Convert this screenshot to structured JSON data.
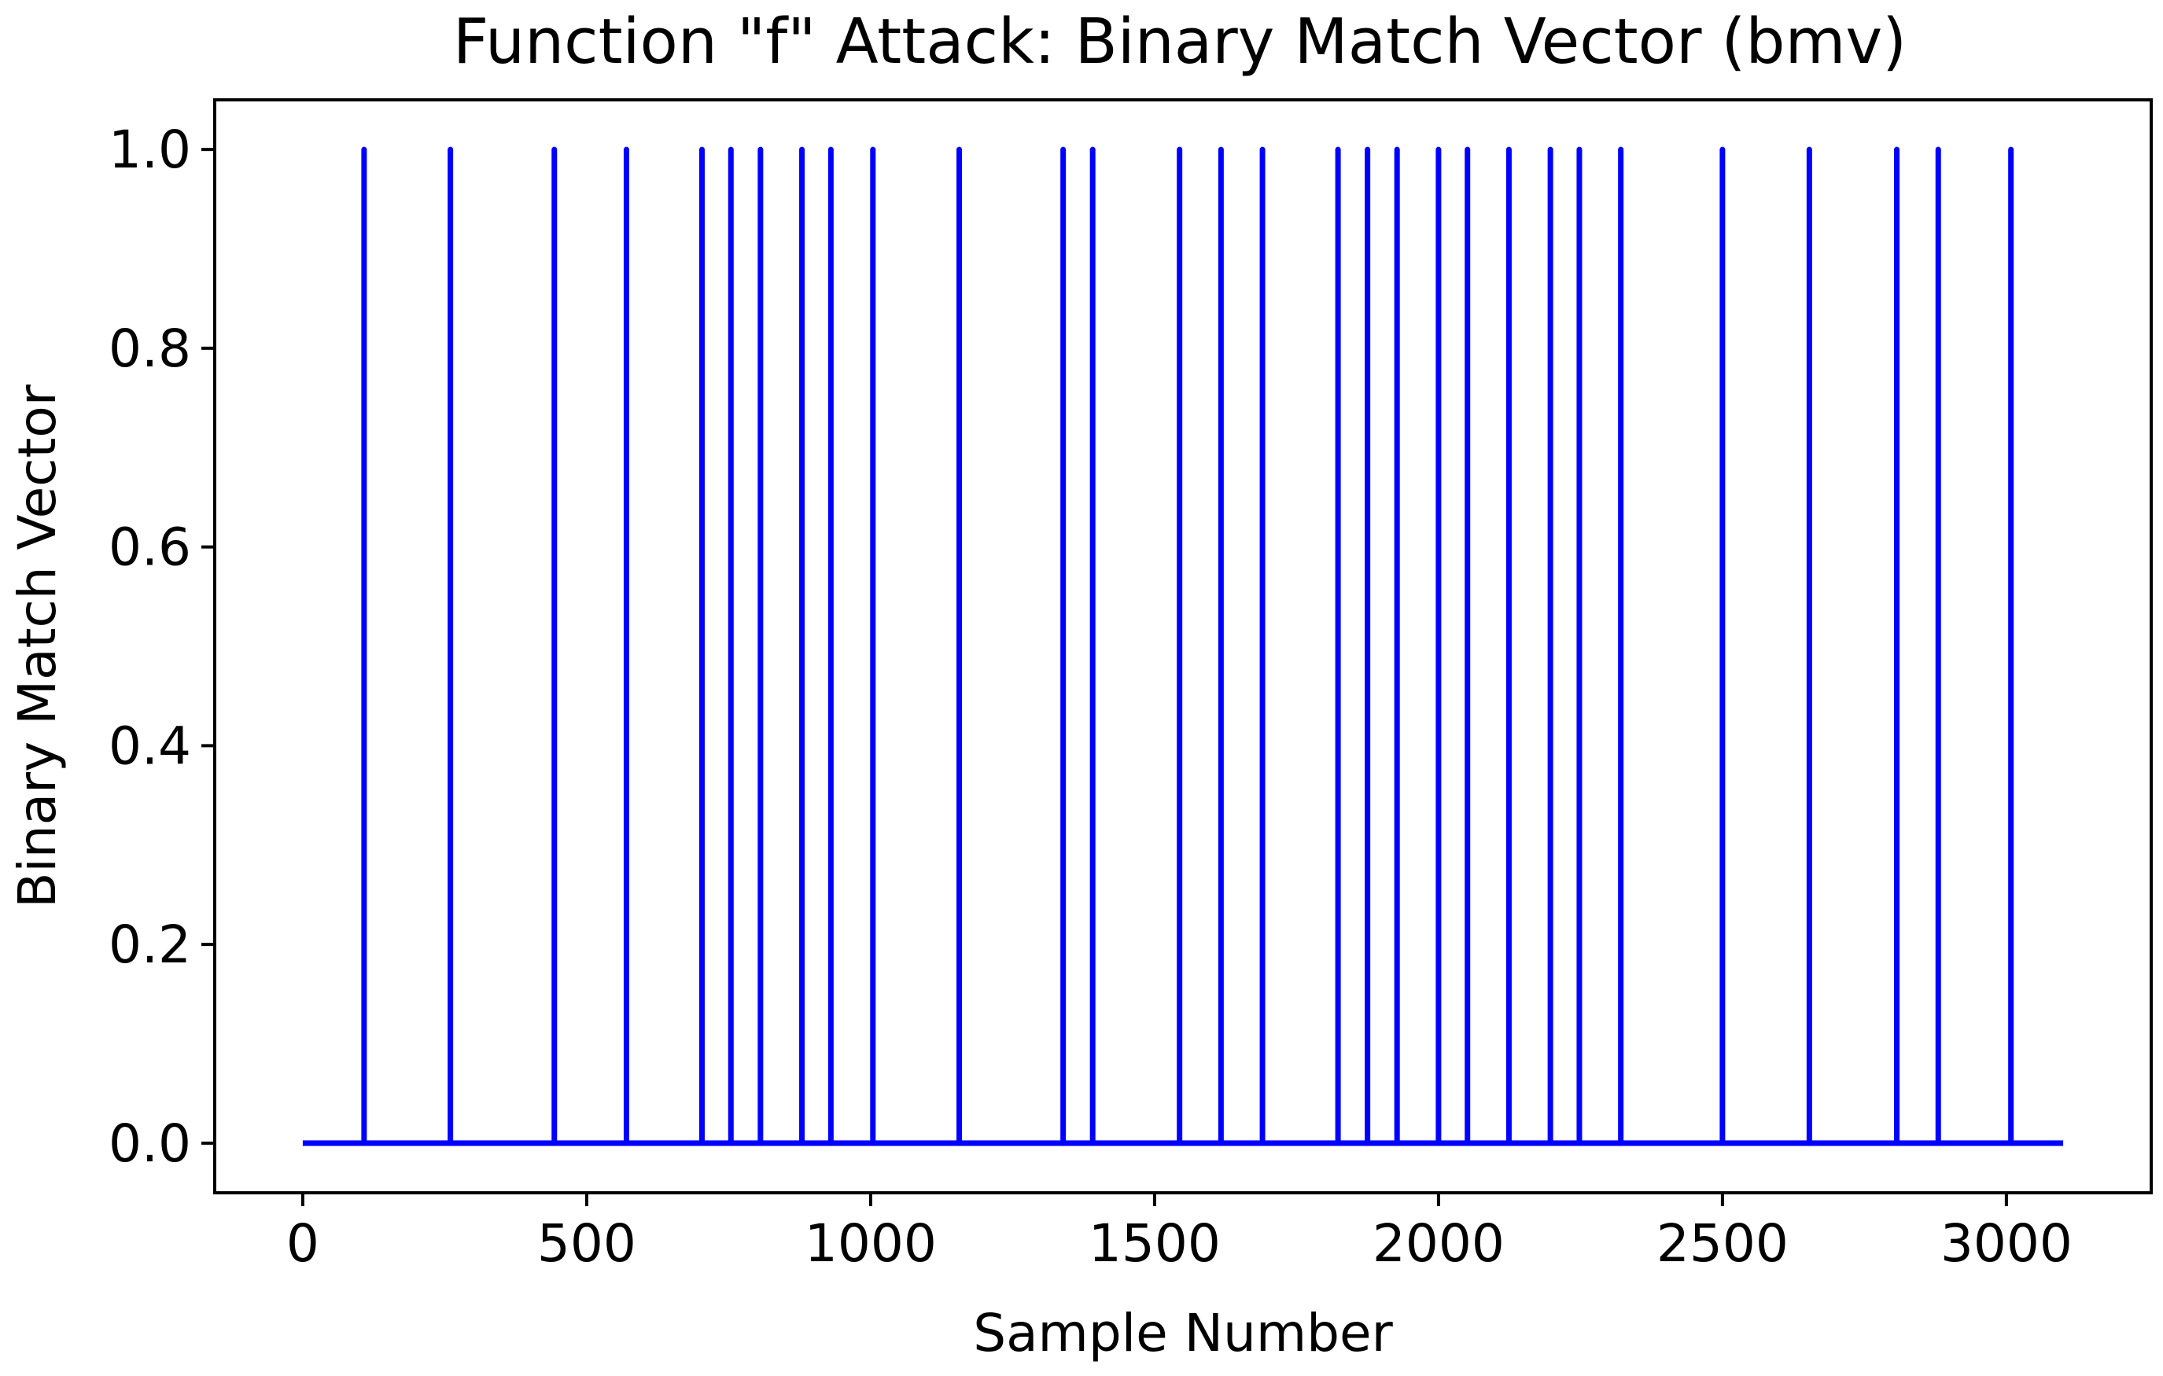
{
  "chart_data": {
    "type": "line",
    "title": "Function \"f\" Attack: Binary Match Vector (bmv)",
    "xlabel": "Sample Number",
    "ylabel": "Binary Match Vector",
    "xlim": [
      -155,
      3255
    ],
    "ylim": [
      -0.05,
      1.05
    ],
    "x_ticks": [
      0,
      500,
      1000,
      1500,
      2000,
      2500,
      3000
    ],
    "y_ticks": [
      0.0,
      0.2,
      0.4,
      0.6,
      0.8,
      1.0
    ],
    "x_tick_labels": [
      "0",
      "500",
      "1000",
      "1500",
      "2000",
      "2500",
      "3000"
    ],
    "y_tick_labels": [
      "0.0",
      "0.2",
      "0.4",
      "0.6",
      "0.8",
      "1.0"
    ],
    "grid": false,
    "series": [
      {
        "color": "#0000ff",
        "x_range": [
          0,
          3100
        ],
        "baseline": 0,
        "peak": 1,
        "spike_x": [
          108,
          260,
          443,
          570,
          703,
          754,
          806,
          879,
          930,
          1004,
          1156,
          1339,
          1391,
          1544,
          1617,
          1690,
          1823,
          1875,
          1927,
          2000,
          2051,
          2124,
          2197,
          2248,
          2321,
          2500,
          2653,
          2807,
          2880,
          3008
        ]
      }
    ]
  }
}
